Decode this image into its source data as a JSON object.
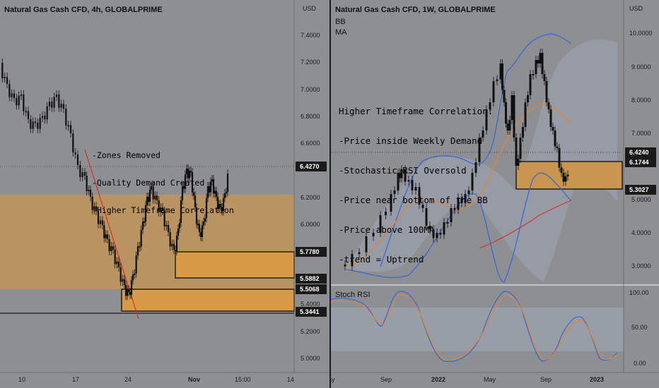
{
  "left": {
    "title": "Natural Gas Cash CFD, 4h, GLOBALPRIME",
    "currency": "USD",
    "y_ticks": [
      "7.4000",
      "7.2000",
      "7.0000",
      "6.8000",
      "6.6000",
      "6.2000",
      "6.0000",
      "5.4000",
      "5.2000",
      "5.0000"
    ],
    "price_tags": [
      "6.4270",
      "5.7780",
      "5.5882",
      "5.5068",
      "5.3441"
    ],
    "x_ticks": [
      "10",
      "17",
      "24",
      "Nov",
      "15:00",
      "14"
    ],
    "note_lines": [
      "-Zones Removed",
      "-Quality Demand Created",
      "-Higher Timeframe Correlation"
    ]
  },
  "right": {
    "title": "Natural Gas Cash CFD, 1W, GLOBALPRIME",
    "indicators": [
      "BB",
      "MA"
    ],
    "currency": "USD",
    "y_ticks": [
      "10.0000",
      "9.0000",
      "8.0000",
      "7.0000",
      "5.0000",
      "4.0000",
      "3.0000"
    ],
    "price_tags": [
      "6.4240",
      "6.1744",
      "5.3027"
    ],
    "x_ticks": [
      "Sep",
      "2022",
      "May",
      "Sep",
      "2023"
    ],
    "partial_x_tick": "ay",
    "note_lines": [
      "Higher Timeframe Correlation:",
      "-Price inside Weekly Demand",
      "-Stochastic RSI Oversold",
      "-Price near bottom of the BB",
      "-Price above 100MA",
      "-trend = Uptrend"
    ],
    "stoch_title": "Stoch RSI",
    "stoch_ticks": [
      "100.00",
      "50.00",
      "0.00"
    ]
  },
  "colors": {
    "background": "#8e8f93",
    "demand_zone": "#c8964f",
    "candle": "#101010",
    "bear_candle": "#c03a44",
    "bollinger": "#3366dd",
    "ma_orange": "#e8822c",
    "ma_red": "#d8322c",
    "trendline": "#e02020"
  }
}
